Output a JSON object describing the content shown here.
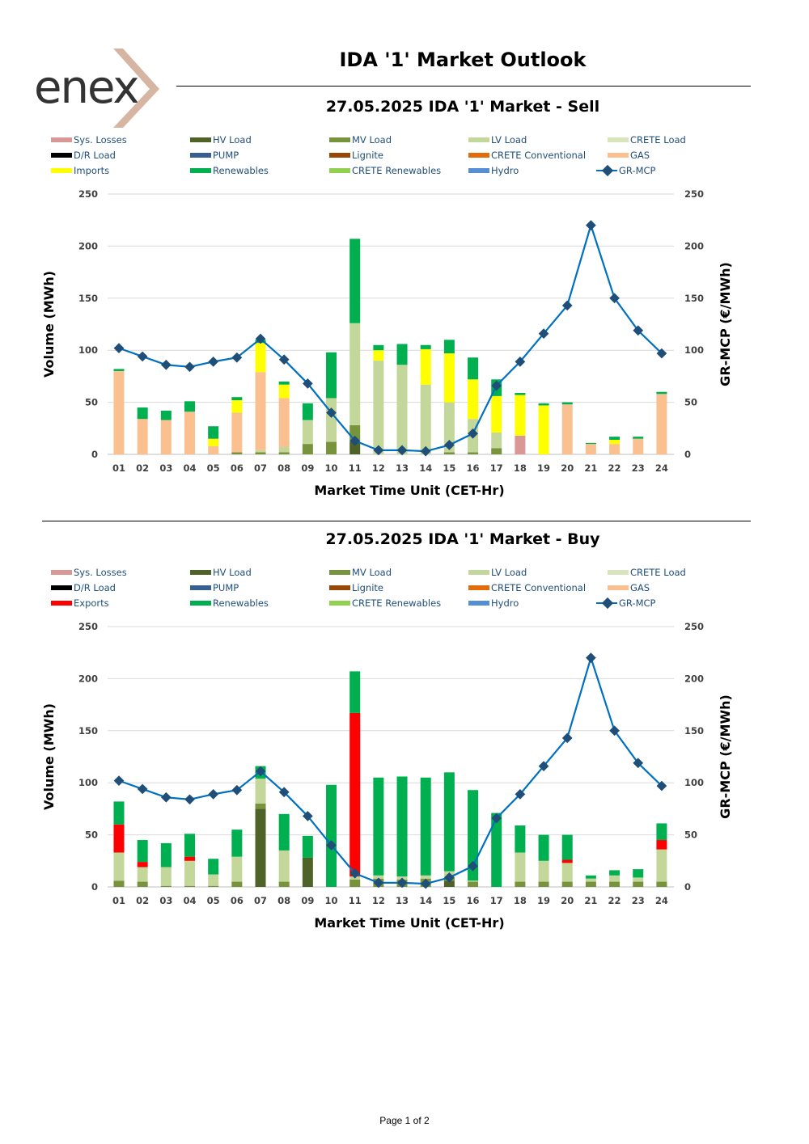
{
  "header": {
    "logo_text": "enex",
    "title": "IDA '1' Market Outlook"
  },
  "footer": {
    "page_label": "Page 1 of 2"
  },
  "chart_data": [
    {
      "type": "bar",
      "subtype": "stacked-bar-with-line",
      "title": "27.05.2025  IDA '1' Market - Sell",
      "xlabel": "Market Time Unit (CET-Hr)",
      "ylabel": "Volume (MWh)",
      "y2label": "GR-MCP (€/MWh)",
      "ylim": [
        0,
        250
      ],
      "y2lim": [
        0,
        250
      ],
      "yticks": [
        0,
        50,
        100,
        150,
        200,
        250
      ],
      "categories": [
        "01",
        "02",
        "03",
        "04",
        "05",
        "06",
        "07",
        "08",
        "09",
        "10",
        "11",
        "12",
        "13",
        "14",
        "15",
        "16",
        "17",
        "18",
        "19",
        "20",
        "21",
        "22",
        "23",
        "24"
      ],
      "legend": [
        {
          "name": "Sys. Losses",
          "color": "#D99795"
        },
        {
          "name": "HV Load",
          "color": "#4F6228"
        },
        {
          "name": "MV Load",
          "color": "#77933C"
        },
        {
          "name": "LV Load",
          "color": "#C4D79B"
        },
        {
          "name": "CRETE Load",
          "color": "#D8E4BC"
        },
        {
          "name": "D/R Load",
          "color": "#000000"
        },
        {
          "name": "PUMP",
          "color": "#366092"
        },
        {
          "name": "Lignite",
          "color": "#974706"
        },
        {
          "name": "CRETE Conventional",
          "color": "#E26B0A"
        },
        {
          "name": "GAS",
          "color": "#FAC090"
        },
        {
          "name": "Imports",
          "color": "#FFFF00"
        },
        {
          "name": "Renewables",
          "color": "#00B050"
        },
        {
          "name": "CRETE Renewables",
          "color": "#92D050"
        },
        {
          "name": "Hydro",
          "color": "#558ED5"
        },
        {
          "name": "GR-MCP",
          "color": "#0070C0",
          "marker_color": "#1F4E79"
        }
      ],
      "series": [
        {
          "name": "Sys. Losses",
          "values": [
            0,
            0,
            0,
            0,
            0,
            0,
            0,
            0,
            0,
            0,
            0,
            0,
            0,
            0,
            0,
            0,
            0,
            18,
            0,
            0,
            0,
            0,
            0,
            0
          ]
        },
        {
          "name": "HV Load",
          "values": [
            0,
            0,
            0,
            0,
            0,
            0,
            0,
            0,
            0,
            0,
            12,
            0,
            0,
            0,
            0,
            0,
            0,
            0,
            0,
            0,
            0,
            0,
            0,
            0
          ]
        },
        {
          "name": "MV Load",
          "values": [
            0,
            0,
            0,
            0,
            0,
            2,
            2,
            2,
            10,
            12,
            16,
            0,
            0,
            0,
            2,
            2,
            6,
            0,
            0,
            0,
            0,
            0,
            0,
            0
          ]
        },
        {
          "name": "LV Load",
          "values": [
            0,
            0,
            0,
            0,
            0,
            0,
            2,
            5,
            23,
            42,
            98,
            90,
            86,
            67,
            48,
            32,
            15,
            0,
            0,
            0,
            0,
            0,
            0,
            0
          ]
        },
        {
          "name": "GAS",
          "values": [
            80,
            34,
            33,
            41,
            8,
            38,
            75,
            47,
            0,
            0,
            0,
            0,
            0,
            0,
            0,
            0,
            0,
            0,
            0,
            48,
            10,
            10,
            15,
            58
          ]
        },
        {
          "name": "Imports",
          "values": [
            0,
            0,
            0,
            0,
            7,
            12,
            28,
            13,
            0,
            0,
            0,
            10,
            0,
            34,
            47,
            38,
            35,
            39,
            47,
            0,
            0,
            4,
            0,
            0
          ]
        },
        {
          "name": "Renewables",
          "values": [
            2,
            11,
            9,
            10,
            12,
            3,
            3,
            3,
            16,
            44,
            81,
            5,
            20,
            4,
            13,
            21,
            16,
            2,
            2,
            2,
            1,
            3,
            2,
            2
          ]
        },
        {
          "name": "GR-MCP",
          "axis": "right",
          "values": [
            102,
            94,
            86,
            84,
            89,
            93,
            111,
            91,
            68,
            40,
            13,
            4,
            4,
            3,
            9,
            20,
            66,
            89,
            116,
            143,
            220,
            150,
            119,
            97
          ]
        }
      ]
    },
    {
      "type": "bar",
      "subtype": "stacked-bar-with-line",
      "title": "27.05.2025  IDA '1' Market - Buy",
      "xlabel": "Market Time Unit (CET-Hr)",
      "ylabel": "Volume (MWh)",
      "y2label": "GR-MCP (€/MWh)",
      "ylim": [
        0,
        250
      ],
      "y2lim": [
        0,
        250
      ],
      "yticks": [
        0,
        50,
        100,
        150,
        200,
        250
      ],
      "categories": [
        "01",
        "02",
        "03",
        "04",
        "05",
        "06",
        "07",
        "08",
        "09",
        "10",
        "11",
        "12",
        "13",
        "14",
        "15",
        "16",
        "17",
        "18",
        "19",
        "20",
        "21",
        "22",
        "23",
        "24"
      ],
      "legend": [
        {
          "name": "Sys. Losses",
          "color": "#D99795"
        },
        {
          "name": "HV Load",
          "color": "#4F6228"
        },
        {
          "name": "MV Load",
          "color": "#77933C"
        },
        {
          "name": "LV Load",
          "color": "#C4D79B"
        },
        {
          "name": "CRETE Load",
          "color": "#D8E4BC"
        },
        {
          "name": "D/R Load",
          "color": "#000000"
        },
        {
          "name": "PUMP",
          "color": "#366092"
        },
        {
          "name": "Lignite",
          "color": "#974706"
        },
        {
          "name": "CRETE Conventional",
          "color": "#E26B0A"
        },
        {
          "name": "GAS",
          "color": "#FAC090"
        },
        {
          "name": "Exports",
          "color": "#FF0000"
        },
        {
          "name": "Renewables",
          "color": "#00B050"
        },
        {
          "name": "CRETE Renewables",
          "color": "#92D050"
        },
        {
          "name": "Hydro",
          "color": "#558ED5"
        },
        {
          "name": "GR-MCP",
          "color": "#0070C0",
          "marker_color": "#1F4E79"
        }
      ],
      "series": [
        {
          "name": "HV Load",
          "values": [
            0,
            0,
            0,
            0,
            0,
            0,
            75,
            0,
            28,
            0,
            0,
            0,
            0,
            0,
            6,
            0,
            0,
            0,
            0,
            0,
            0,
            0,
            0,
            0
          ]
        },
        {
          "name": "MV Load",
          "values": [
            6,
            5,
            1,
            1,
            1,
            5,
            5,
            5,
            0,
            0,
            7,
            8,
            7,
            8,
            3,
            5,
            0,
            5,
            5,
            5,
            5,
            5,
            5,
            5
          ]
        },
        {
          "name": "LV Load",
          "values": [
            27,
            14,
            18,
            24,
            11,
            24,
            24,
            30,
            0,
            0,
            3,
            3,
            3,
            3,
            6,
            1,
            0,
            28,
            20,
            18,
            3,
            6,
            4,
            31
          ]
        },
        {
          "name": "Exports",
          "values": [
            27,
            5,
            0,
            4,
            0,
            0,
            0,
            0,
            0,
            0,
            157,
            0,
            0,
            0,
            0,
            0,
            0,
            0,
            0,
            3,
            0,
            0,
            0,
            9
          ]
        },
        {
          "name": "Renewables",
          "values": [
            22,
            21,
            23,
            22,
            15,
            26,
            12,
            35,
            21,
            98,
            40,
            94,
            96,
            94,
            95,
            87,
            71,
            26,
            25,
            24,
            3,
            5,
            8,
            16
          ]
        },
        {
          "name": "GR-MCP",
          "axis": "right",
          "values": [
            102,
            94,
            86,
            84,
            89,
            93,
            111,
            91,
            68,
            40,
            13,
            4,
            4,
            3,
            9,
            20,
            66,
            89,
            116,
            143,
            220,
            150,
            119,
            97
          ]
        }
      ]
    }
  ]
}
